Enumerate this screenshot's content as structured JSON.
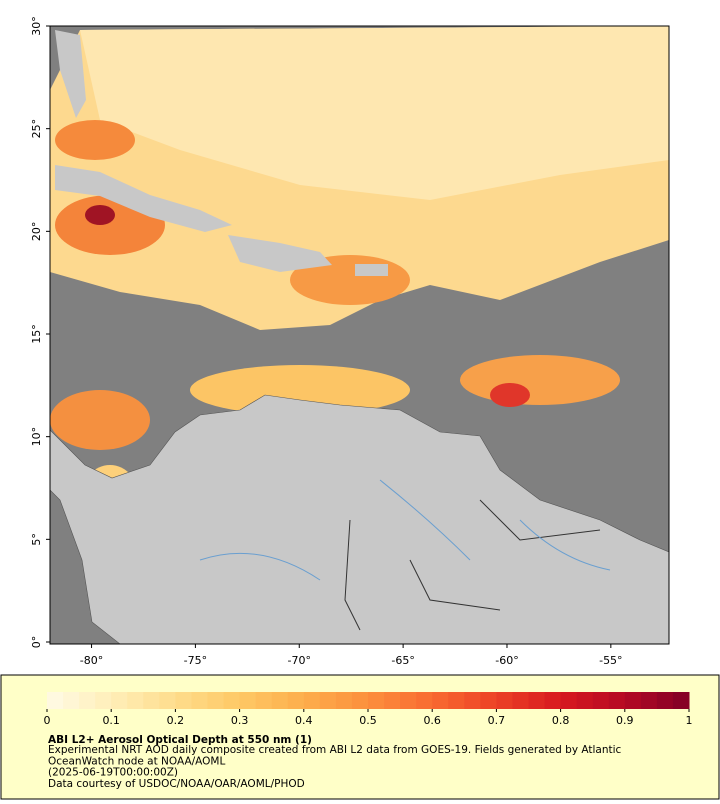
{
  "map": {
    "xlim": [
      -82,
      -52.2
    ],
    "ylim": [
      0,
      30
    ],
    "xticks": [
      {
        "value": -80,
        "label": "-80°"
      },
      {
        "value": -75,
        "label": "-75°"
      },
      {
        "value": -70,
        "label": "-70°"
      },
      {
        "value": -65,
        "label": "-65°"
      },
      {
        "value": -60,
        "label": "-60°"
      },
      {
        "value": -55,
        "label": "-55°"
      }
    ],
    "yticks": [
      {
        "value": 0,
        "label": "0°"
      },
      {
        "value": 5,
        "label": "5°"
      },
      {
        "value": 10,
        "label": "10°"
      },
      {
        "value": 15,
        "label": "15°"
      },
      {
        "value": 20,
        "label": "20°"
      },
      {
        "value": 25,
        "label": "25°"
      },
      {
        "value": 30,
        "label": "30°"
      }
    ]
  },
  "colorbar": {
    "ticks": [
      0,
      0.1,
      0.2,
      0.3,
      0.4,
      0.5,
      0.6,
      0.7,
      0.8,
      0.9,
      1
    ],
    "colors": [
      "#fffbe6",
      "#ffeeb8",
      "#fedd8c",
      "#fec865",
      "#fdae4c",
      "#fc8f3c",
      "#f86a30",
      "#ec4126",
      "#d7191f",
      "#b50924",
      "#800026"
    ]
  },
  "caption": {
    "title": "ABI L2+ Aerosol Optical Depth at 550 nm (1)",
    "lines": [
      "Experimental NRT AOD daily composite created from ABI L2 data from GOES-19. Fields generated by Atlantic",
      "OceanWatch node at NOAA/AOML",
      "(2025-06-19T00:00:00Z)",
      "Data courtesy of USDOC/NOAA/OAR/AOML/PHOD"
    ]
  }
}
